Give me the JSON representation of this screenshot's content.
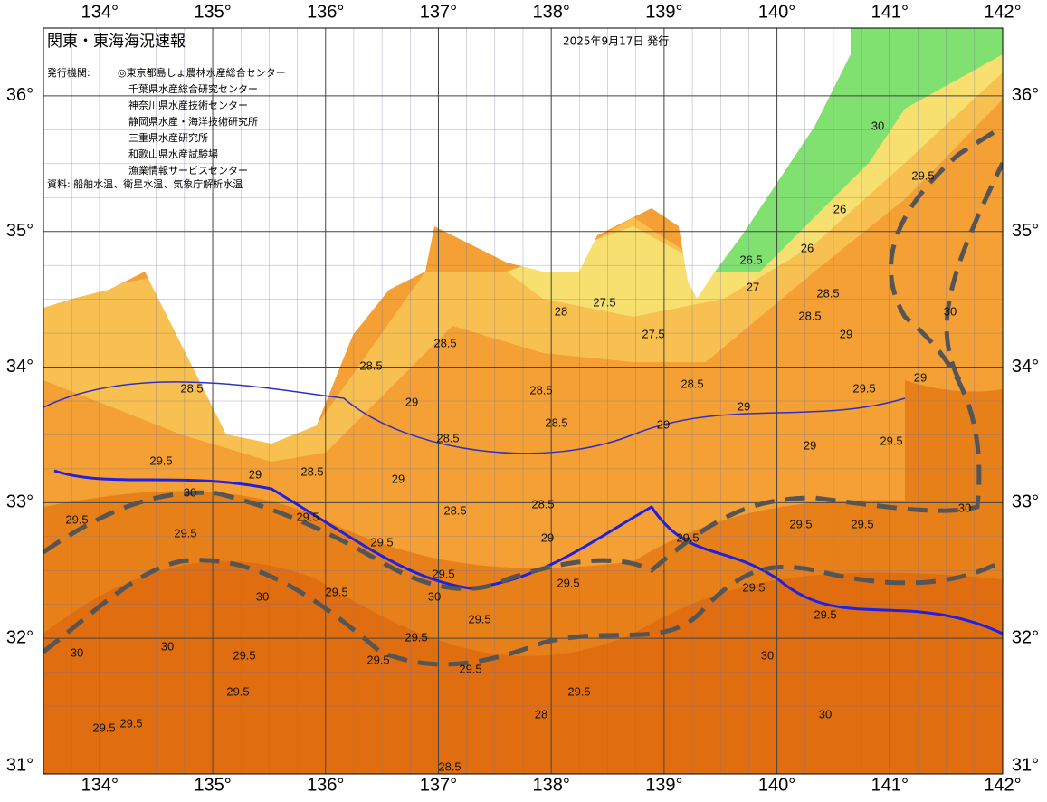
{
  "header": {
    "title": "関東・東海海況速報",
    "date": "2025年9月17日 発行",
    "agencies_label": "発行機関:",
    "agencies": [
      "◎東京都島しょ農林水産総合センター",
      "千葉県水産総合研究センター",
      "神奈川県水産技術センター",
      "静岡県水産・海洋技術研究所",
      "三重県水産研究所",
      "和歌山県水産試験場",
      "漁業情報サービスセンター"
    ],
    "source": "資料: 船舶水温、衛星水温、気象庁解析水温"
  },
  "map": {
    "lon_ticks": [
      {
        "value": 134,
        "label": "134°"
      },
      {
        "value": 135,
        "label": "135°"
      },
      {
        "value": 136,
        "label": "136°"
      },
      {
        "value": 137,
        "label": "137°"
      },
      {
        "value": 138,
        "label": "138°"
      },
      {
        "value": 139,
        "label": "139°"
      },
      {
        "value": 140,
        "label": "140°"
      },
      {
        "value": 141,
        "label": "141°"
      },
      {
        "value": 142,
        "label": "142°"
      }
    ],
    "lat_ticks": [
      {
        "value": 31,
        "label": "31°"
      },
      {
        "value": 32,
        "label": "32°"
      },
      {
        "value": 33,
        "label": "33°"
      },
      {
        "value": 34,
        "label": "34°"
      },
      {
        "value": 35,
        "label": "35°"
      },
      {
        "value": 36,
        "label": "36°"
      }
    ],
    "lon_lim": [
      133.5,
      142
    ],
    "lat_lim": [
      31,
      36.5
    ],
    "contour_labels": [
      28.5,
      28.5,
      28.5,
      28.5,
      28.5,
      28.5,
      28.5,
      28.5,
      28.5,
      28.5,
      28.5,
      28.5,
      29,
      29,
      29,
      29,
      29,
      29,
      29,
      29,
      29,
      29.5,
      29.5,
      29.5,
      29.5,
      29.5,
      29.5,
      29.5,
      29.5,
      29.5,
      29.5,
      29.5,
      29.5,
      29.5,
      29.5,
      29.5,
      29.5,
      29.5,
      29.5,
      29.5,
      29.5,
      29.5,
      29.5,
      29.5,
      30,
      30,
      30,
      30,
      30,
      30,
      30,
      30,
      30,
      30,
      26,
      26,
      26.5,
      27,
      27.5,
      27.5,
      28,
      28,
      28.5,
      29.5,
      29.5,
      29.5,
      30
    ]
  }
}
